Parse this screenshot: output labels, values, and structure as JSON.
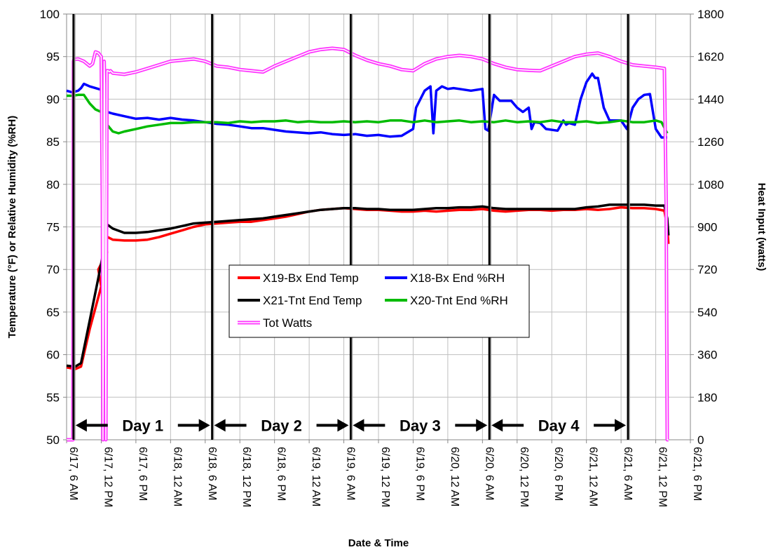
{
  "chart_data": {
    "type": "line",
    "xlabel": "Date & Time",
    "ylabel": "Temperature (°F) or Relative Humidity (%RH)",
    "y2label": "Heat Input (watts)",
    "ylim": [
      50,
      100
    ],
    "y2lim": [
      0,
      1800
    ],
    "yticks": [
      50,
      55,
      60,
      65,
      70,
      75,
      80,
      85,
      90,
      95,
      100
    ],
    "y2ticks": [
      0,
      180,
      360,
      540,
      720,
      900,
      1080,
      1260,
      1440,
      1620,
      1800
    ],
    "x_axis_unit": "hours",
    "xlim": [
      0,
      108
    ],
    "xtick_hours": [
      0,
      6,
      12,
      18,
      24,
      30,
      36,
      42,
      48,
      54,
      60,
      66,
      72,
      78,
      84,
      90,
      96,
      102,
      108
    ],
    "xtick_labels": [
      "6/17, 6 AM",
      "6/17, 12 PM",
      "6/17, 6 PM",
      "6/18, 12 AM",
      "6/18, 6 AM",
      "6/18, 12 PM",
      "6/18, 6 PM",
      "6/19, 12 AM",
      "6/19, 6 AM",
      "6/19, 12 PM",
      "6/19, 6 PM",
      "6/20, 12 AM",
      "6/20, 6 AM",
      "6/20, 12 PM",
      "6/20, 6 PM",
      "6/21, 12 AM",
      "6/21, 6 AM",
      "6/21, 12 PM",
      "6/21, 6 PM"
    ],
    "grid": true,
    "legend_placement": "center",
    "day_markers": [
      1.2,
      25.2,
      49.2,
      73.2,
      97.2
    ],
    "day_labels": [
      {
        "label": "Day 1",
        "from": 1.2,
        "to": 25.2
      },
      {
        "label": "Day 2",
        "from": 25.2,
        "to": 49.2
      },
      {
        "label": "Day 3",
        "from": 49.2,
        "to": 73.2
      },
      {
        "label": "Day 4",
        "from": 73.2,
        "to": 97.2
      }
    ],
    "series": [
      {
        "name": "X19-Bx End Temp",
        "color": "#ff0000",
        "axis": "left",
        "width": 3.5,
        "style": "solid",
        "x": [
          0,
          1.5,
          2.5,
          4,
          6,
          5.5,
          7,
          6.5,
          8,
          10,
          12,
          14,
          16,
          18,
          20,
          22,
          24,
          26,
          28,
          30,
          32,
          34,
          36,
          38,
          40,
          42,
          44,
          46,
          48,
          50,
          52,
          54,
          56,
          58,
          60,
          62,
          64,
          66,
          68,
          70,
          72,
          74,
          76,
          78,
          80,
          82,
          84,
          86,
          88,
          90,
          92,
          94,
          96,
          98,
          100,
          102,
          103.5,
          104,
          104.2
        ],
        "y": [
          58.5,
          58.3,
          58.6,
          63,
          68,
          70,
          72,
          74,
          73.5,
          73.4,
          73.4,
          73.5,
          73.8,
          74.2,
          74.6,
          75,
          75.3,
          75.4,
          75.5,
          75.6,
          75.6,
          75.8,
          76,
          76.2,
          76.5,
          76.8,
          77,
          77.1,
          77.2,
          77.1,
          77,
          77,
          76.9,
          76.8,
          76.8,
          76.9,
          76.8,
          76.9,
          77,
          77,
          77.1,
          76.9,
          76.8,
          76.9,
          77,
          77,
          76.9,
          77,
          77,
          77.1,
          77,
          77.1,
          77.3,
          77.2,
          77.2,
          77.1,
          76.9,
          75,
          73
        ]
      },
      {
        "name": "X18-Bx End %RH",
        "color": "#0000ff",
        "axis": "left",
        "width": 3.5,
        "style": "solid",
        "x": [
          0,
          1,
          2,
          2.5,
          3,
          4,
          5,
          6,
          7,
          8,
          10,
          12,
          14,
          16,
          18,
          20,
          22,
          24,
          26,
          28,
          30,
          32,
          34,
          36,
          38,
          40,
          42,
          44,
          46,
          48,
          50,
          52,
          54,
          56,
          58,
          60,
          60.5,
          62,
          63,
          63.5,
          64,
          65,
          66,
          67,
          68,
          70,
          72,
          72.5,
          73,
          74,
          75,
          77,
          78,
          79,
          80,
          80.5,
          81,
          82,
          83,
          85,
          86,
          86.5,
          87,
          88,
          89,
          90,
          91,
          91.5,
          92,
          93,
          94,
          95,
          96,
          97,
          98,
          99,
          100,
          101,
          102,
          103,
          104
        ],
        "y": [
          91,
          90.8,
          91,
          91.3,
          91.8,
          91.5,
          91.3,
          91.1,
          88.5,
          88.3,
          88,
          87.7,
          87.8,
          87.6,
          87.8,
          87.6,
          87.5,
          87.3,
          87.1,
          87.0,
          86.8,
          86.6,
          86.6,
          86.4,
          86.2,
          86.1,
          86.0,
          86.1,
          85.9,
          85.8,
          85.9,
          85.7,
          85.8,
          85.6,
          85.7,
          86.5,
          89,
          91,
          91.5,
          86,
          91,
          91.5,
          91.2,
          91.3,
          91.2,
          91.0,
          91.2,
          86.5,
          86.3,
          90.5,
          89.8,
          89.8,
          89,
          88.5,
          89,
          86.5,
          87.3,
          87.2,
          86.5,
          86.3,
          87.5,
          87.0,
          87.2,
          87.0,
          90,
          92,
          93,
          92.5,
          92.5,
          89,
          87.5,
          87.5,
          87.5,
          86.5,
          89,
          90,
          90.5,
          90.6,
          86.5,
          85.5,
          85.5
        ]
      },
      {
        "name": "X21-Tnt End Temp",
        "color": "#000000",
        "axis": "left",
        "width": 3.5,
        "style": "solid",
        "x": [
          0,
          1.5,
          2.5,
          4,
          5.5,
          6.5,
          6.8,
          7,
          8,
          10,
          12,
          14,
          16,
          18,
          20,
          22,
          24,
          26,
          28,
          30,
          32,
          34,
          36,
          38,
          40,
          42,
          44,
          46,
          48,
          50,
          52,
          54,
          56,
          58,
          60,
          62,
          64,
          66,
          68,
          70,
          72,
          74,
          76,
          78,
          80,
          82,
          84,
          86,
          88,
          90,
          92,
          94,
          96,
          98,
          100,
          102,
          103.5,
          104,
          104.2
        ],
        "y": [
          58.7,
          58.6,
          59,
          64,
          69,
          72.5,
          74,
          75.3,
          74.8,
          74.3,
          74.3,
          74.4,
          74.6,
          74.8,
          75.1,
          75.4,
          75.5,
          75.6,
          75.7,
          75.8,
          75.9,
          76,
          76.2,
          76.4,
          76.6,
          76.8,
          77,
          77.1,
          77.2,
          77.2,
          77.1,
          77.1,
          77,
          77,
          77,
          77.1,
          77.2,
          77.2,
          77.3,
          77.3,
          77.4,
          77.2,
          77.1,
          77.1,
          77.1,
          77.1,
          77.1,
          77.1,
          77.1,
          77.3,
          77.4,
          77.6,
          77.6,
          77.6,
          77.6,
          77.5,
          77.5,
          76,
          74
        ]
      },
      {
        "name": "X20-Tnt End %RH",
        "color": "#00bb00",
        "axis": "left",
        "width": 3.5,
        "style": "solid",
        "x": [
          0,
          1,
          2,
          3,
          4,
          5,
          6,
          7,
          8,
          9,
          10,
          12,
          14,
          16,
          18,
          20,
          22,
          24,
          26,
          28,
          30,
          32,
          34,
          36,
          38,
          40,
          42,
          44,
          46,
          48,
          50,
          52,
          54,
          56,
          58,
          60,
          62,
          64,
          66,
          68,
          70,
          72,
          74,
          76,
          78,
          80,
          82,
          84,
          86,
          88,
          90,
          92,
          94,
          96,
          98,
          100,
          102,
          103,
          104
        ],
        "y": [
          90.4,
          90.4,
          90.5,
          90.5,
          89.5,
          88.8,
          88.5,
          87.0,
          86.2,
          86.0,
          86.2,
          86.5,
          86.8,
          87.0,
          87.2,
          87.2,
          87.3,
          87.3,
          87.3,
          87.2,
          87.4,
          87.3,
          87.4,
          87.4,
          87.5,
          87.3,
          87.4,
          87.3,
          87.3,
          87.4,
          87.3,
          87.4,
          87.3,
          87.5,
          87.5,
          87.3,
          87.5,
          87.3,
          87.4,
          87.5,
          87.3,
          87.4,
          87.3,
          87.5,
          87.3,
          87.4,
          87.3,
          87.5,
          87.3,
          87.3,
          87.4,
          87.2,
          87.3,
          87.5,
          87.3,
          87.3,
          87.5,
          87.3,
          86
        ]
      },
      {
        "name": "Tot Watts",
        "color": "#ff33ff",
        "axis": "right",
        "width": 5,
        "style": "double",
        "x": [
          0,
          1.1,
          1.2,
          1.3,
          2,
          3,
          4,
          4.5,
          5,
          5.5,
          6,
          6.2,
          6.3,
          6.5,
          6.6,
          6.8,
          7,
          7.2,
          7.4,
          7.6,
          8,
          10,
          12,
          14,
          16,
          18,
          20,
          22,
          24,
          26,
          28,
          30,
          32,
          34,
          36,
          38,
          40,
          42,
          44,
          46,
          48,
          50,
          52,
          54,
          56,
          58,
          60,
          62,
          64,
          66,
          68,
          70,
          72,
          74,
          76,
          78,
          80,
          82,
          84,
          86,
          88,
          90,
          92,
          94,
          96,
          98,
          100,
          102,
          103.5,
          103.8,
          104.0,
          104.2
        ],
        "y": [
          0,
          0,
          1600,
          1608,
          1610,
          1600,
          1580,
          1590,
          1640,
          1635,
          1620,
          1000,
          0,
          1600,
          1500,
          0,
          1560,
          1560,
          1555,
          1560,
          1550,
          1545,
          1555,
          1570,
          1585,
          1600,
          1605,
          1610,
          1600,
          1580,
          1575,
          1565,
          1560,
          1555,
          1580,
          1600,
          1620,
          1640,
          1650,
          1655,
          1650,
          1625,
          1605,
          1590,
          1580,
          1565,
          1560,
          1590,
          1610,
          1620,
          1625,
          1620,
          1610,
          1590,
          1575,
          1565,
          1562,
          1560,
          1580,
          1600,
          1620,
          1630,
          1635,
          1620,
          1600,
          1585,
          1580,
          1575,
          1570,
          1000,
          0,
          0
        ]
      }
    ],
    "legend": {
      "rows": [
        [
          "X19-Bx End Temp",
          "X18-Bx End %RH"
        ],
        [
          "X21-Tnt End Temp",
          "X20-Tnt End %RH"
        ],
        [
          "Tot Watts"
        ]
      ]
    }
  }
}
